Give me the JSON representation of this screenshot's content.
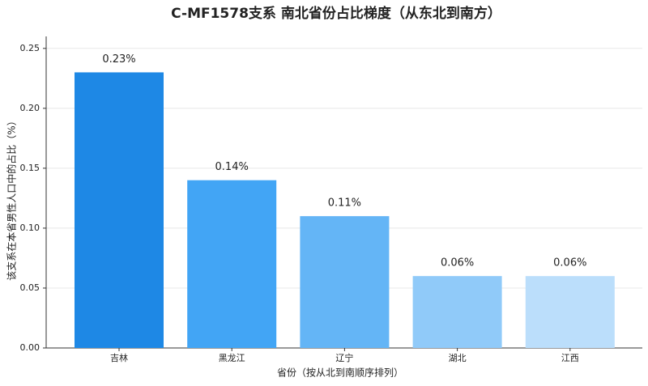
{
  "chart_data": {
    "type": "bar",
    "title": "C-MF1578支系 南北省份占比梯度（从东北到南方）",
    "x_label": "省份（按从北到南顺序排列）",
    "y_label": "该支系在本省男性人口中的占比（%）",
    "categories": [
      "吉林",
      "黑龙江",
      "辽宁",
      "湖北",
      "江西"
    ],
    "values": [
      0.23,
      0.14,
      0.11,
      0.06,
      0.06
    ],
    "value_labels": [
      "0.23%",
      "0.14%",
      "0.11%",
      "0.06%",
      "0.06%"
    ],
    "colors": [
      "#1e88e5",
      "#42a5f5",
      "#64b5f6",
      "#90caf9",
      "#bbdefb"
    ],
    "ylim": [
      0,
      0.26
    ],
    "yticks": [
      {
        "value": 0,
        "label": "0.00"
      },
      {
        "value": 0.05,
        "label": "0.05"
      },
      {
        "value": 0.1,
        "label": "0.10"
      },
      {
        "value": 0.15,
        "label": "0.15"
      },
      {
        "value": 0.2,
        "label": "0.20"
      },
      {
        "value": 0.25,
        "label": "0.25"
      }
    ],
    "grid": true
  }
}
